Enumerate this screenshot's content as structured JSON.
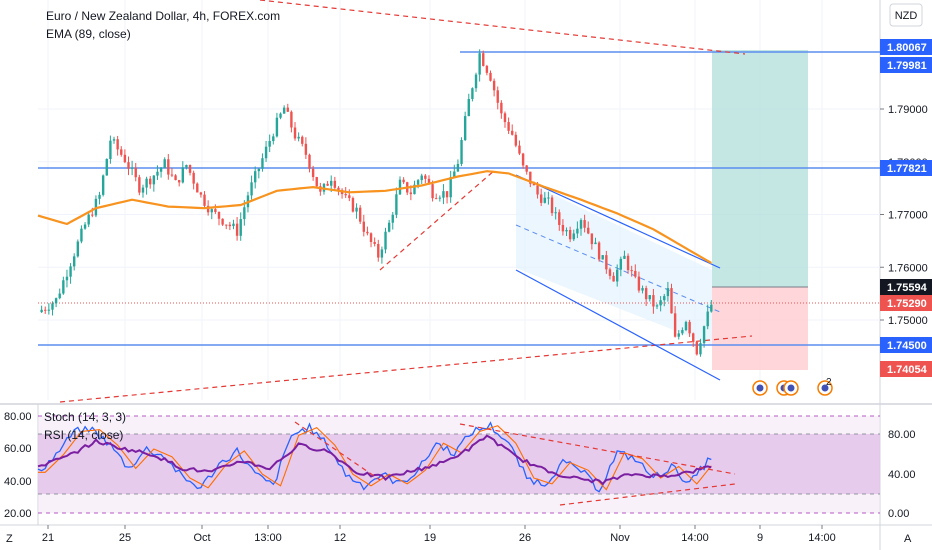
{
  "header": {
    "title": "Euro / New Zealand Dollar, 4h, FOREX.com",
    "indicator": "EMA (89, close)",
    "currency_badge": "NZD"
  },
  "lower_pane": {
    "stoch_label": "Stoch (14, 3, 3)",
    "rsi_label": "RSI (14, close)",
    "left_ticks": [
      "80.00",
      "60.00",
      "40.00",
      "20.00"
    ],
    "right_ticks": [
      "80.00",
      "40.00",
      "0.00"
    ]
  },
  "x_axis": {
    "labels": [
      "21",
      "25",
      "Oct",
      "13:00",
      "12",
      "19",
      "26",
      "Nov",
      "14:00",
      "9",
      "14:00"
    ],
    "left_corner": "Z",
    "right_corner": "A"
  },
  "price_tags": [
    {
      "label": "1.80067",
      "kind": "blue"
    },
    {
      "label": "1.79981",
      "kind": "blue"
    },
    {
      "label": "1.77821",
      "kind": "blue"
    },
    {
      "label": "1.75594",
      "kind": "dark"
    },
    {
      "label": "1.75290",
      "kind": "red"
    },
    {
      "label": "1.74500",
      "kind": "blue"
    },
    {
      "label": "1.74054",
      "kind": "red"
    }
  ],
  "chart_data": {
    "type": "candlestick",
    "title": "Euro / New Zealand Dollar, 4h, FOREX.com",
    "y_axis_ticks": [
      "1.79000",
      "1.78000",
      "1.77000",
      "1.76000",
      "1.75000"
    ],
    "ylim": [
      1.7355,
      1.8062
    ],
    "horizontal_levels": [
      1.80067,
      1.77821,
      1.745
    ],
    "position_tool": {
      "entry": 1.75594,
      "target": 1.79981,
      "stop": 1.74054
    },
    "last_price": 1.7529,
    "ema_period": 89,
    "colors": {
      "up": "#26a69a",
      "down": "#ef5350",
      "ema": "#f7931e",
      "level": "#5b8def",
      "trend": "#e53935"
    },
    "price_path": [
      [
        0,
        1.7515
      ],
      [
        5,
        1.7538
      ],
      [
        9,
        1.761
      ],
      [
        13,
        1.768
      ],
      [
        17,
        1.7735
      ],
      [
        20,
        1.7842
      ],
      [
        24,
        1.7805
      ],
      [
        28,
        1.7752
      ],
      [
        31,
        1.7768
      ],
      [
        35,
        1.7796
      ],
      [
        38,
        1.7758
      ],
      [
        41,
        1.7794
      ],
      [
        45,
        1.7735
      ],
      [
        48,
        1.7705
      ],
      [
        52,
        1.7685
      ],
      [
        55,
        1.7668
      ],
      [
        58,
        1.7738
      ],
      [
        61,
        1.7788
      ],
      [
        65,
        1.7858
      ],
      [
        68,
        1.7902
      ],
      [
        71,
        1.785
      ],
      [
        74,
        1.7815
      ],
      [
        78,
        1.7738
      ],
      [
        81,
        1.7772
      ],
      [
        85,
        1.7728
      ],
      [
        88,
        1.7708
      ],
      [
        91,
        1.7658
      ],
      [
        94,
        1.7622
      ],
      [
        97,
        1.7682
      ],
      [
        100,
        1.7758
      ],
      [
        103,
        1.7742
      ],
      [
        106,
        1.7778
      ],
      [
        109,
        1.7742
      ],
      [
        113,
        1.774
      ],
      [
        116,
        1.78
      ],
      [
        119,
        1.7915
      ],
      [
        122,
        1.8005
      ],
      [
        125,
        1.7962
      ],
      [
        128,
        1.7888
      ],
      [
        131,
        1.7852
      ],
      [
        134,
        1.7788
      ],
      [
        138,
        1.7738
      ],
      [
        141,
        1.7722
      ],
      [
        144,
        1.7682
      ],
      [
        147,
        1.7662
      ],
      [
        150,
        1.7695
      ],
      [
        153,
        1.7652
      ],
      [
        156,
        1.7612
      ],
      [
        159,
        1.7582
      ],
      [
        162,
        1.7618
      ],
      [
        165,
        1.7572
      ],
      [
        168,
        1.7545
      ],
      [
        171,
        1.7522
      ],
      [
        174,
        1.7555
      ],
      [
        176,
        1.7462
      ],
      [
        179,
        1.7502
      ],
      [
        182,
        1.7442
      ],
      [
        184,
        1.7488
      ],
      [
        186,
        1.7529
      ]
    ],
    "ema_path": [
      [
        0,
        1.7698
      ],
      [
        8,
        1.7682
      ],
      [
        16,
        1.7712
      ],
      [
        26,
        1.7728
      ],
      [
        36,
        1.7715
      ],
      [
        46,
        1.7712
      ],
      [
        56,
        1.7718
      ],
      [
        66,
        1.7745
      ],
      [
        76,
        1.7752
      ],
      [
        86,
        1.7742
      ],
      [
        96,
        1.7745
      ],
      [
        106,
        1.7755
      ],
      [
        116,
        1.7772
      ],
      [
        124,
        1.7782
      ],
      [
        130,
        1.7778
      ],
      [
        140,
        1.7752
      ],
      [
        150,
        1.7728
      ],
      [
        160,
        1.7702
      ],
      [
        170,
        1.7672
      ],
      [
        178,
        1.764
      ],
      [
        186,
        1.7608
      ]
    ],
    "stoch_path": [
      [
        0,
        42
      ],
      [
        5,
        60
      ],
      [
        10,
        84
      ],
      [
        15,
        86
      ],
      [
        20,
        70
      ],
      [
        25,
        46
      ],
      [
        30,
        66
      ],
      [
        35,
        58
      ],
      [
        40,
        36
      ],
      [
        45,
        26
      ],
      [
        50,
        50
      ],
      [
        55,
        64
      ],
      [
        60,
        40
      ],
      [
        65,
        28
      ],
      [
        70,
        80
      ],
      [
        75,
        88
      ],
      [
        80,
        70
      ],
      [
        85,
        40
      ],
      [
        90,
        28
      ],
      [
        95,
        40
      ],
      [
        100,
        30
      ],
      [
        105,
        44
      ],
      [
        110,
        72
      ],
      [
        115,
        62
      ],
      [
        120,
        84
      ],
      [
        125,
        90
      ],
      [
        130,
        72
      ],
      [
        135,
        36
      ],
      [
        140,
        30
      ],
      [
        145,
        52
      ],
      [
        150,
        44
      ],
      [
        155,
        24
      ],
      [
        160,
        62
      ],
      [
        165,
        56
      ],
      [
        170,
        36
      ],
      [
        175,
        48
      ],
      [
        180,
        30
      ],
      [
        186,
        58
      ]
    ],
    "rsi_path": [
      [
        0,
        48
      ],
      [
        8,
        58
      ],
      [
        16,
        74
      ],
      [
        24,
        66
      ],
      [
        32,
        60
      ],
      [
        40,
        46
      ],
      [
        48,
        42
      ],
      [
        56,
        54
      ],
      [
        64,
        46
      ],
      [
        72,
        70
      ],
      [
        80,
        64
      ],
      [
        88,
        42
      ],
      [
        96,
        36
      ],
      [
        104,
        44
      ],
      [
        112,
        52
      ],
      [
        120,
        68
      ],
      [
        124,
        80
      ],
      [
        132,
        58
      ],
      [
        140,
        44
      ],
      [
        148,
        36
      ],
      [
        156,
        32
      ],
      [
        164,
        40
      ],
      [
        172,
        38
      ],
      [
        180,
        42
      ],
      [
        186,
        48
      ]
    ]
  }
}
